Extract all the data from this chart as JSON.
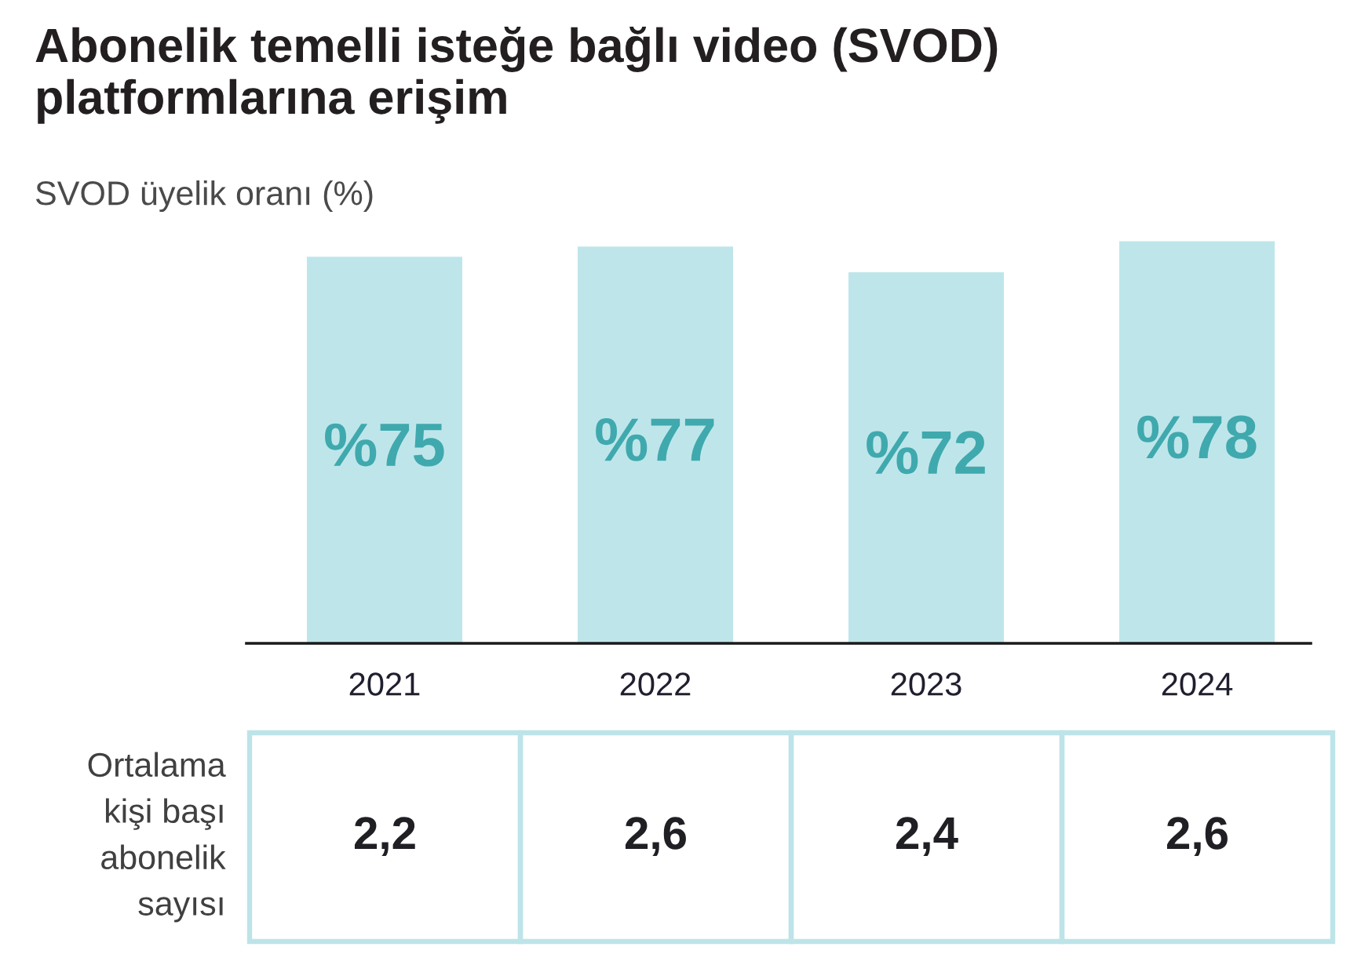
{
  "chart_data": [
    {
      "type": "bar",
      "title": "Abonelik temelli isteğe bağlı video (SVOD)\nplatformlarına erişim",
      "subtitle": "SVOD üyelik oranı (%)",
      "categories": [
        "2021",
        "2022",
        "2023",
        "2024"
      ],
      "values": [
        75,
        77,
        72,
        78
      ],
      "value_labels": [
        "%75",
        "%77",
        "%72",
        "%78"
      ],
      "color": "#bee6ea",
      "tick_labels": "x"
    },
    {
      "type": "other",
      "ylabel": "Ortalama\nkişi başı\nabonelik\nsayısı",
      "values": [
        2.2,
        2.6,
        2.4,
        2.6
      ],
      "value_labels": [
        "2,2",
        "2,6",
        "2,4",
        "2,6"
      ],
      "color": "#bde4e8"
    }
  ]
}
